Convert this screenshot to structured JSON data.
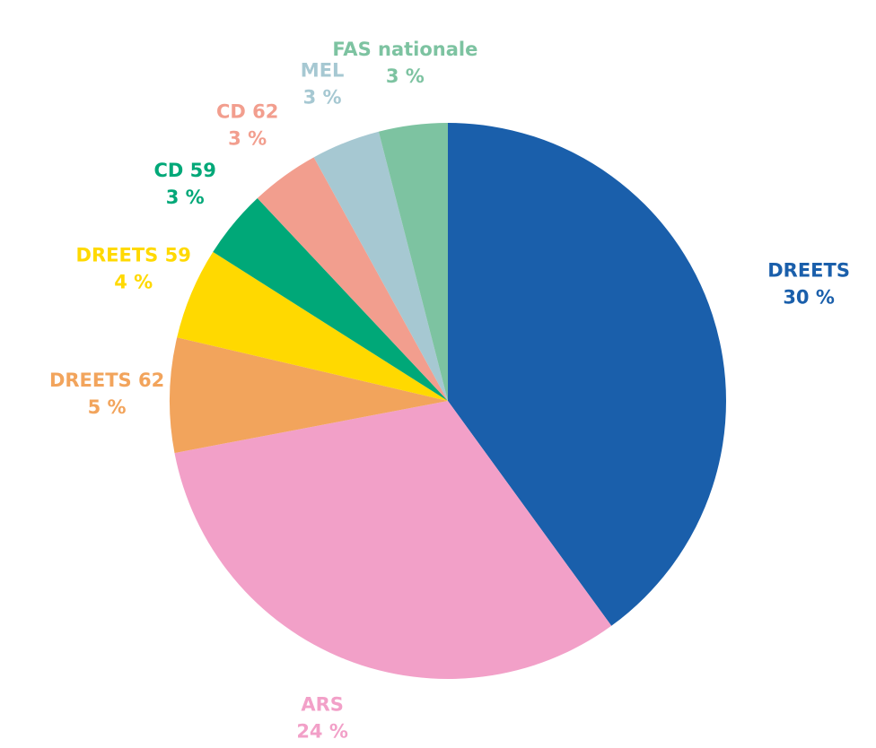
{
  "chart_data": {
    "type": "pie",
    "categories": [
      "DREETS",
      "ARS",
      "DREETS 62",
      "DREETS 59",
      "CD 59",
      "CD 62",
      "MEL",
      "FAS nationale"
    ],
    "values": [
      30,
      24,
      5,
      4,
      3,
      3,
      3,
      3
    ],
    "value_labels": [
      "30 %",
      "24 %",
      "5 %",
      "4 %",
      "3 %",
      "3 %",
      "3 %",
      "3 %"
    ],
    "colors": [
      "#1a5fab",
      "#f2a0c8",
      "#f2a45c",
      "#ffd900",
      "#00a878",
      "#f29e8e",
      "#a6c8d2",
      "#7dc3a1"
    ]
  }
}
